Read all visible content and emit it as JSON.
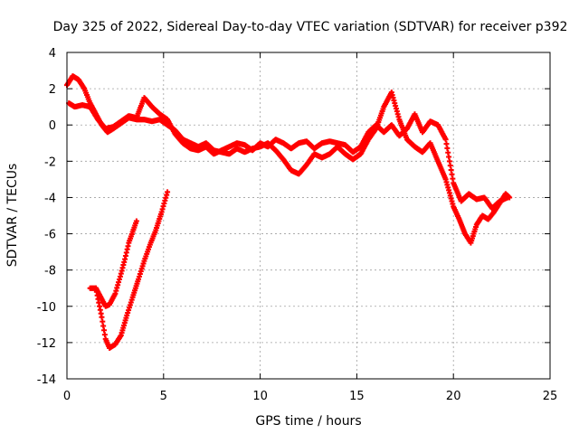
{
  "chart_data": {
    "type": "scatter",
    "title": "Day 325 of 2022, Sidereal Day-to-day VTEC variation (SDTVAR) for receiver p392",
    "xlabel": "GPS time / hours",
    "ylabel": "SDTVAR / TECUs",
    "xlim": [
      0,
      25
    ],
    "ylim": [
      -14,
      4
    ],
    "xticks": [
      0,
      5,
      10,
      15,
      20,
      25
    ],
    "yticks": [
      -14,
      -12,
      -10,
      -8,
      -6,
      -4,
      -2,
      0,
      2,
      4
    ],
    "grid": true,
    "marker": "plus",
    "color": "#ff0000",
    "series": [
      {
        "name": "main-trace-a",
        "x": [
          0.0,
          0.3,
          0.6,
          0.9,
          1.2,
          1.5,
          1.8,
          2.1,
          2.4,
          2.8,
          3.2,
          3.6,
          4.0,
          4.4,
          4.8,
          5.2,
          5.6,
          6.0,
          6.4,
          6.8,
          7.2,
          7.6,
          8.0,
          8.4,
          8.8,
          9.2,
          9.6,
          10.0,
          10.4,
          10.8,
          11.2,
          11.6,
          12.0,
          12.4,
          12.8,
          13.2,
          13.6,
          14.0,
          14.4,
          14.8,
          15.2,
          15.6,
          16.0,
          16.4,
          16.8,
          17.2,
          17.6,
          18.0,
          18.4,
          18.8,
          19.2,
          19.6,
          20.0,
          20.3,
          20.6,
          20.9,
          21.2,
          21.5,
          21.8,
          22.1,
          22.4,
          22.7,
          22.9
        ],
        "y": [
          2.2,
          2.7,
          2.5,
          2.0,
          1.2,
          0.6,
          0.0,
          -0.4,
          -0.2,
          0.1,
          0.4,
          0.3,
          0.3,
          0.2,
          0.3,
          0.0,
          -0.3,
          -0.8,
          -1.0,
          -1.2,
          -1.0,
          -1.4,
          -1.5,
          -1.6,
          -1.3,
          -1.5,
          -1.3,
          -1.2,
          -1.0,
          -1.4,
          -1.9,
          -2.5,
          -2.7,
          -2.2,
          -1.6,
          -1.8,
          -1.6,
          -1.2,
          -1.6,
          -1.9,
          -1.6,
          -0.8,
          -0.2,
          1.0,
          1.8,
          0.3,
          -0.8,
          -1.2,
          -1.5,
          -1.0,
          -2.0,
          -3.0,
          -4.5,
          -5.2,
          -6.0,
          -6.5,
          -5.5,
          -5.0,
          -5.2,
          -4.8,
          -4.3,
          -3.8,
          -4.0
        ]
      },
      {
        "name": "main-trace-b",
        "x": [
          0.1,
          0.4,
          0.8,
          1.2,
          1.6,
          2.0,
          2.4,
          2.8,
          3.2,
          3.6,
          4.0,
          4.4,
          4.8,
          5.2,
          5.6,
          6.0,
          6.4,
          6.8,
          7.2,
          7.6,
          8.0,
          8.4,
          8.8,
          9.2,
          9.6,
          10.0,
          10.4,
          10.8,
          11.2,
          11.6,
          12.0,
          12.4,
          12.8,
          13.2,
          13.6,
          14.0,
          14.4,
          14.8,
          15.2,
          15.6,
          16.0,
          16.4,
          16.8,
          17.2,
          17.6,
          18.0,
          18.4,
          18.8,
          19.2,
          19.6,
          20.0,
          20.4,
          20.8,
          21.2,
          21.6,
          22.0,
          22.4,
          22.8
        ],
        "y": [
          1.2,
          1.0,
          1.1,
          1.0,
          0.3,
          -0.2,
          -0.1,
          0.2,
          0.5,
          0.4,
          1.5,
          1.0,
          0.6,
          0.3,
          -0.5,
          -1.0,
          -1.3,
          -1.4,
          -1.2,
          -1.6,
          -1.4,
          -1.2,
          -1.0,
          -1.1,
          -1.4,
          -1.0,
          -1.2,
          -0.8,
          -1.0,
          -1.3,
          -1.0,
          -0.9,
          -1.3,
          -1.0,
          -0.9,
          -1.0,
          -1.1,
          -1.5,
          -1.2,
          -0.4,
          0.0,
          -0.4,
          0.0,
          -0.6,
          -0.2,
          0.6,
          -0.4,
          0.2,
          0.0,
          -0.8,
          -3.2,
          -4.2,
          -3.8,
          -4.1,
          -4.0,
          -4.6,
          -4.2,
          -4.0
        ]
      },
      {
        "name": "lower-branch-a",
        "x": [
          1.2,
          1.5,
          1.8,
          2.0,
          2.2,
          2.5,
          2.8,
          3.1,
          3.4,
          3.7,
          4.0,
          4.3,
          4.6,
          4.9,
          5.2
        ],
        "y": [
          -9.0,
          -9.0,
          -10.6,
          -11.8,
          -12.3,
          -12.1,
          -11.6,
          -10.5,
          -9.5,
          -8.5,
          -7.5,
          -6.6,
          -5.8,
          -4.8,
          -3.7
        ]
      },
      {
        "name": "lower-branch-b",
        "x": [
          1.5,
          1.8,
          2.0,
          2.2,
          2.5,
          2.8,
          3.0,
          3.2,
          3.4,
          3.6
        ],
        "y": [
          -9.0,
          -9.6,
          -10.0,
          -9.9,
          -9.3,
          -8.2,
          -7.4,
          -6.5,
          -5.9,
          -5.3
        ]
      }
    ]
  }
}
